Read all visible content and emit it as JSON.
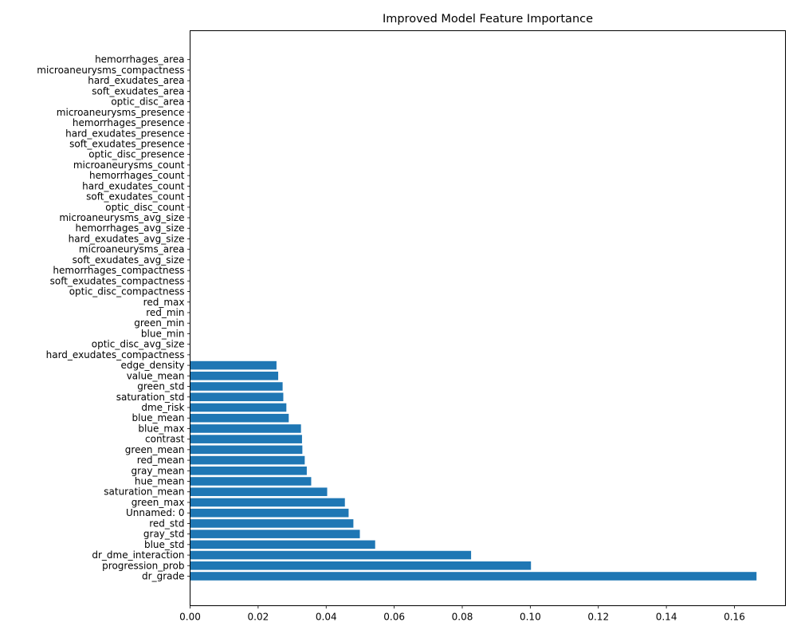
{
  "chart_data": {
    "type": "bar",
    "orientation": "horizontal",
    "title": "Improved Model Feature Importance",
    "xlabel": "",
    "ylabel": "",
    "xlim": [
      0,
      0.175
    ],
    "x_ticks": [
      "0.00",
      "0.02",
      "0.04",
      "0.06",
      "0.08",
      "0.10",
      "0.12",
      "0.14",
      "0.16"
    ],
    "bar_color": "#1f77b4",
    "grid": false,
    "categories": [
      "dr_grade",
      "progression_prob",
      "dr_dme_interaction",
      "blue_std",
      "gray_std",
      "red_std",
      "Unnamed: 0",
      "green_max",
      "saturation_mean",
      "hue_mean",
      "gray_mean",
      "red_mean",
      "green_mean",
      "contrast",
      "blue_max",
      "blue_mean",
      "dme_risk",
      "saturation_std",
      "green_std",
      "value_mean",
      "edge_density",
      "hard_exudates_compactness",
      "optic_disc_avg_size",
      "blue_min",
      "green_min",
      "red_min",
      "red_max",
      "optic_disc_compactness",
      "soft_exudates_compactness",
      "hemorrhages_compactness",
      "soft_exudates_avg_size",
      "microaneurysms_area",
      "hard_exudates_avg_size",
      "hemorrhages_avg_size",
      "microaneurysms_avg_size",
      "optic_disc_count",
      "soft_exudates_count",
      "hard_exudates_count",
      "hemorrhages_count",
      "microaneurysms_count",
      "optic_disc_presence",
      "soft_exudates_presence",
      "hard_exudates_presence",
      "hemorrhages_presence",
      "microaneurysms_presence",
      "optic_disc_area",
      "soft_exudates_area",
      "hard_exudates_area",
      "microaneurysms_compactness",
      "hemorrhages_area"
    ],
    "values": [
      0.1665,
      0.1002,
      0.0826,
      0.0544,
      0.0499,
      0.048,
      0.0466,
      0.0455,
      0.0403,
      0.0356,
      0.0343,
      0.0337,
      0.033,
      0.0329,
      0.0326,
      0.029,
      0.0283,
      0.0274,
      0.0272,
      0.0259,
      0.0254,
      0.0,
      0.0,
      0.0,
      0.0,
      0.0,
      0.0,
      0.0,
      0.0,
      0.0,
      0.0,
      0.0,
      0.0,
      0.0,
      0.0,
      0.0,
      0.0,
      0.0,
      0.0,
      0.0,
      0.0,
      0.0,
      0.0,
      0.0,
      0.0,
      0.0,
      0.0,
      0.0,
      0.0,
      0.0
    ]
  }
}
